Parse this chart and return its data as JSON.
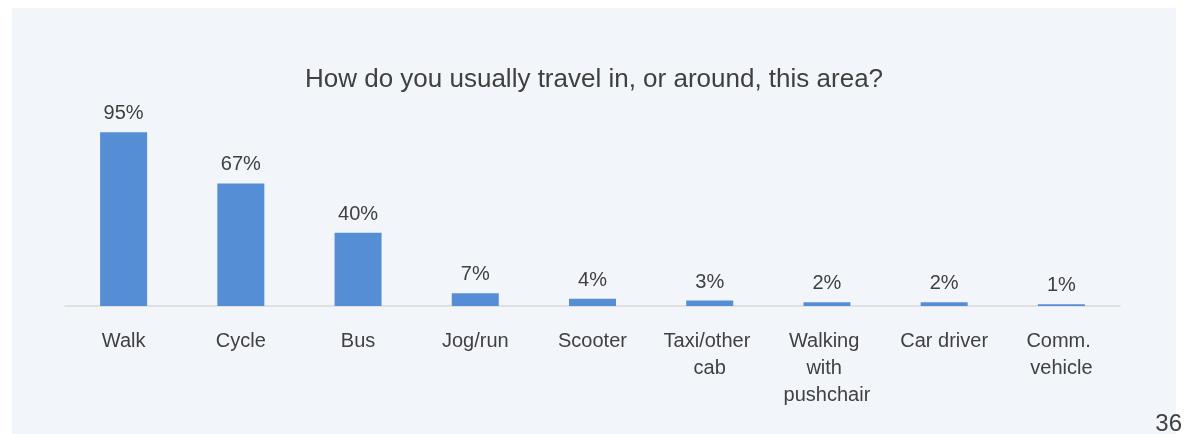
{
  "chart_data": {
    "type": "bar",
    "title": "How do you usually travel in, or around, this area?",
    "categories": [
      "Walk",
      "Cycle",
      "Bus",
      "Jog/run",
      "Scooter",
      "Taxi/other cab",
      "Walking with pushchair",
      "Car driver",
      "Comm. vehicle"
    ],
    "values": [
      95,
      67,
      40,
      7,
      4,
      3,
      2,
      2,
      1
    ],
    "value_labels": [
      "95%",
      "67%",
      "40%",
      "7%",
      "4%",
      "3%",
      "2%",
      "2%",
      "1%"
    ],
    "color": "#558ed5",
    "annotations": [
      "36"
    ]
  }
}
